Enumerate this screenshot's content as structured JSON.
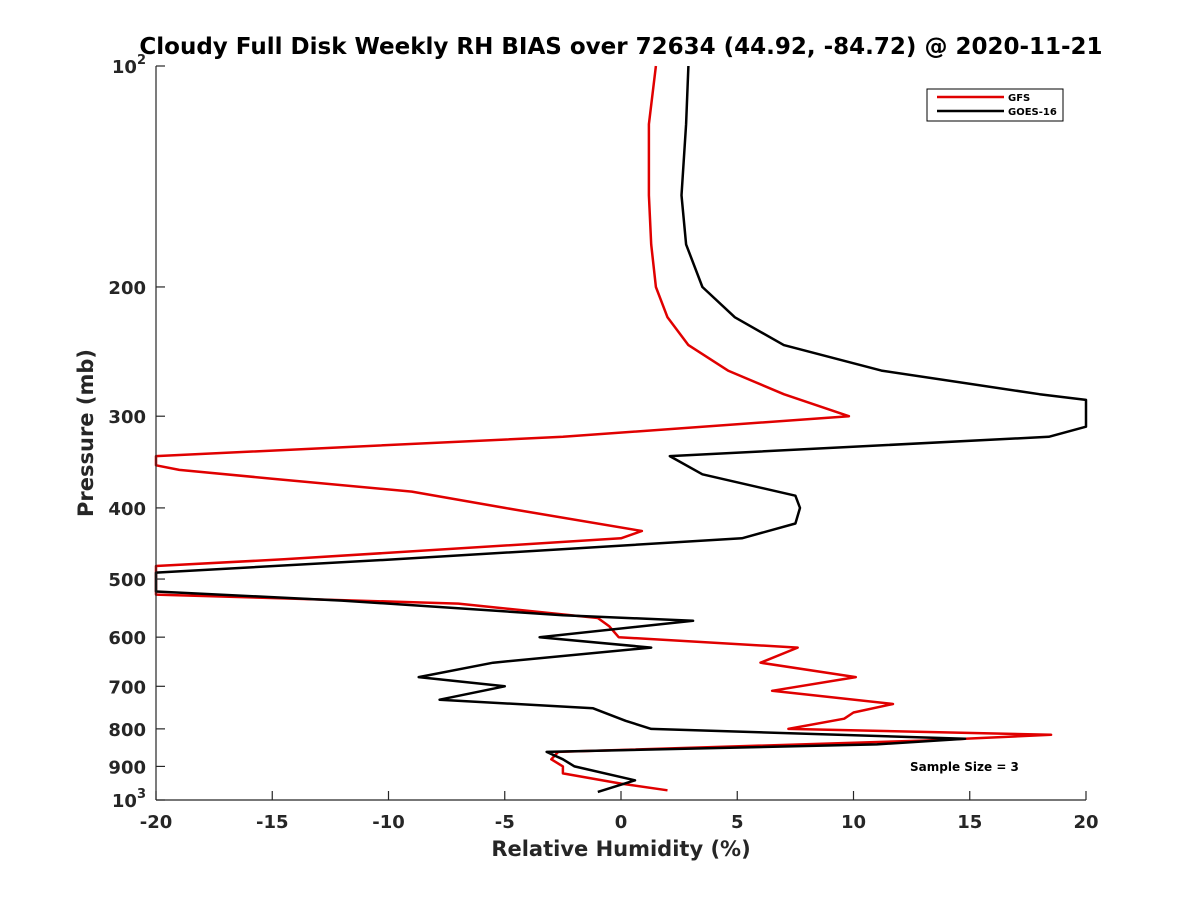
{
  "chart_data": {
    "type": "line",
    "title": "Cloudy Full Disk Weekly RH BIAS over 72634 (44.92, -84.72) @ 2020-11-21",
    "xlabel": "Relative Humidity (%)",
    "ylabel": "Pressure (mb)",
    "xlim": [
      -20,
      20
    ],
    "ylim": [
      100,
      1000
    ],
    "yscale": "log",
    "y_reversed": true,
    "xticks": [
      -20,
      -15,
      -10,
      -5,
      0,
      5,
      10,
      15,
      20
    ],
    "xtick_labels": [
      "-20",
      "-15",
      "-10",
      "-5",
      "0",
      "5",
      "10",
      "15",
      "20"
    ],
    "yticks": [
      100,
      200,
      300,
      400,
      500,
      600,
      700,
      800,
      900,
      1000
    ],
    "ytick_labels": [
      {
        "base": "10",
        "exp": "2"
      },
      {
        "base": "200",
        "exp": ""
      },
      {
        "base": "300",
        "exp": ""
      },
      {
        "base": "400",
        "exp": ""
      },
      {
        "base": "500",
        "exp": ""
      },
      {
        "base": "600",
        "exp": ""
      },
      {
        "base": "700",
        "exp": ""
      },
      {
        "base": "800",
        "exp": ""
      },
      {
        "base": "900",
        "exp": ""
      },
      {
        "base": "10",
        "exp": "3"
      }
    ],
    "grid": false,
    "legend_position": "top-right",
    "annotation": "Sample Size = 3",
    "series": [
      {
        "name": "GFS",
        "color": "#e00000",
        "points": [
          [
            1.5,
            100
          ],
          [
            1.2,
            120
          ],
          [
            1.2,
            150
          ],
          [
            1.3,
            175
          ],
          [
            1.5,
            200
          ],
          [
            2.0,
            220
          ],
          [
            2.9,
            240
          ],
          [
            4.6,
            260
          ],
          [
            7.0,
            280
          ],
          [
            9.8,
            300
          ],
          [
            -2.5,
            320
          ],
          [
            -20.0,
            340
          ],
          [
            -20.0,
            350
          ],
          [
            -19.0,
            355
          ],
          [
            -15.0,
            365
          ],
          [
            -9.0,
            380
          ],
          [
            -5.0,
            400
          ],
          [
            0.9,
            430
          ],
          [
            0.0,
            440
          ],
          [
            -14.5,
            470
          ],
          [
            -20.0,
            480
          ],
          [
            -20.0,
            525
          ],
          [
            -7.0,
            540
          ],
          [
            -1.0,
            565
          ],
          [
            -0.5,
            580
          ],
          [
            -0.1,
            600
          ],
          [
            7.6,
            620
          ],
          [
            6.0,
            650
          ],
          [
            10.1,
            680
          ],
          [
            6.5,
            710
          ],
          [
            11.7,
            740
          ],
          [
            10.0,
            760
          ],
          [
            9.6,
            775
          ],
          [
            7.2,
            800
          ],
          [
            18.5,
            815
          ],
          [
            13.0,
            830
          ],
          [
            -2.7,
            860
          ],
          [
            -3.0,
            880
          ],
          [
            -2.5,
            900
          ],
          [
            -2.5,
            920
          ],
          [
            0.0,
            950
          ],
          [
            2.0,
            970
          ]
        ]
      },
      {
        "name": "GOES-16",
        "color": "#000000",
        "points": [
          [
            2.9,
            100
          ],
          [
            2.8,
            120
          ],
          [
            2.6,
            150
          ],
          [
            2.8,
            175
          ],
          [
            3.5,
            200
          ],
          [
            4.9,
            220
          ],
          [
            7.0,
            240
          ],
          [
            11.2,
            260
          ],
          [
            18.0,
            280
          ],
          [
            20.0,
            285
          ],
          [
            20.0,
            310
          ],
          [
            18.4,
            320
          ],
          [
            2.1,
            340
          ],
          [
            3.5,
            360
          ],
          [
            7.5,
            385
          ],
          [
            7.7,
            400
          ],
          [
            7.5,
            420
          ],
          [
            5.2,
            440
          ],
          [
            -9.7,
            470
          ],
          [
            -20.0,
            490
          ],
          [
            -20.0,
            520
          ],
          [
            -12.0,
            535
          ],
          [
            -2.5,
            560
          ],
          [
            3.1,
            570
          ],
          [
            -3.5,
            600
          ],
          [
            1.3,
            620
          ],
          [
            -5.5,
            650
          ],
          [
            -8.7,
            680
          ],
          [
            -5.0,
            700
          ],
          [
            -7.8,
            730
          ],
          [
            -1.2,
            750
          ],
          [
            0.2,
            780
          ],
          [
            1.3,
            800
          ],
          [
            14.8,
            825
          ],
          [
            11.0,
            840
          ],
          [
            -3.2,
            860
          ],
          [
            -2.5,
            880
          ],
          [
            -2.0,
            900
          ],
          [
            0.6,
            940
          ],
          [
            -1.0,
            975
          ]
        ]
      }
    ]
  }
}
